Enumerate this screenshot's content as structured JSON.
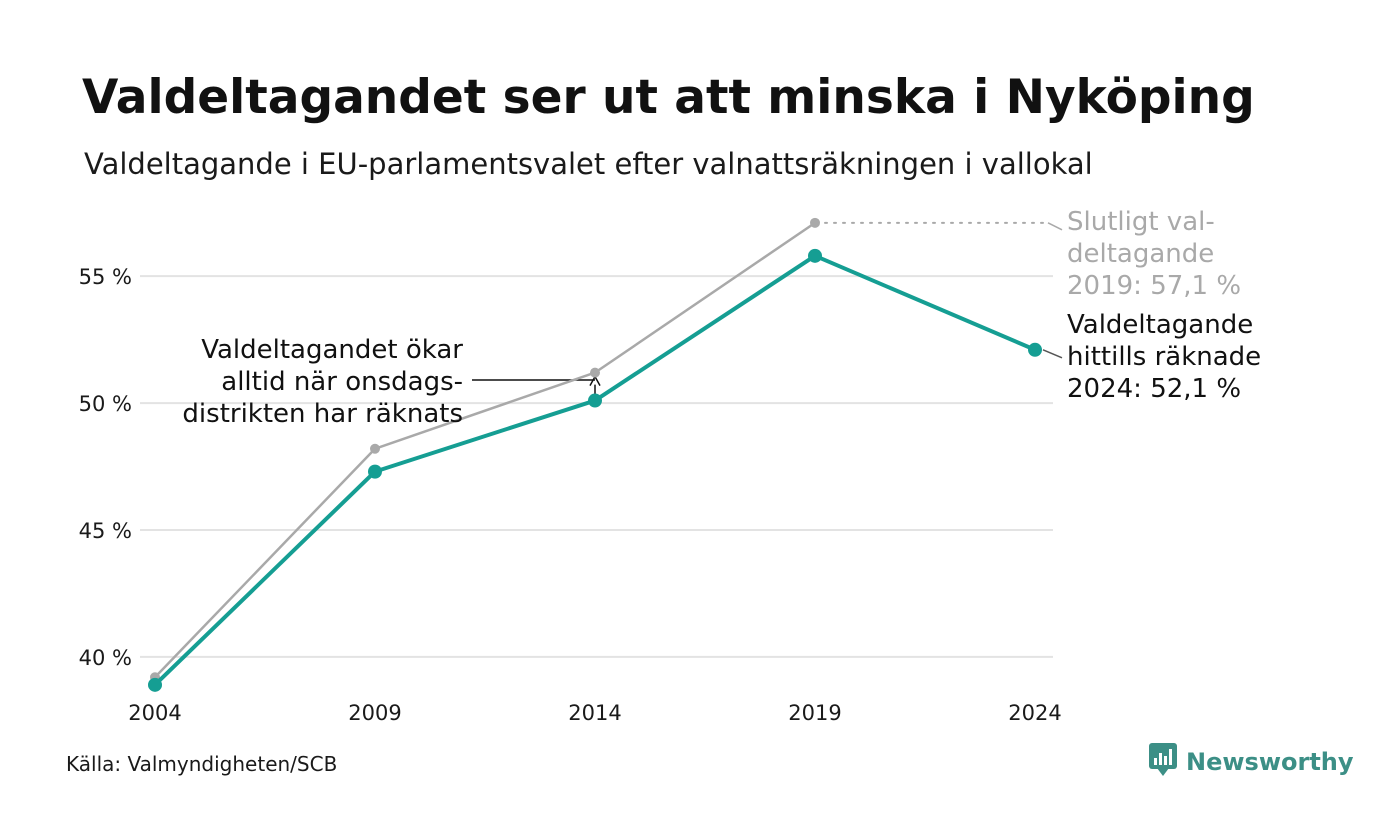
{
  "header": {
    "title": "Valdeltagandet ser ut att minska i Nyköping",
    "subtitle": "Valdeltagande i EU-parlamentsvalet efter valnattsräkningen i vallokal"
  },
  "footer": {
    "source": "Källa: Valmyndigheten/SCB",
    "brand": "Newsworthy",
    "brand_icon": "newsworthy-logo-icon"
  },
  "colors": {
    "final_series": "#a9a9a9",
    "counted_series": "#159e93",
    "grid": "#e3e3e3",
    "brand": "#3c8f86"
  },
  "chart_data": {
    "type": "line",
    "x": [
      2004,
      2009,
      2014,
      2019,
      2024
    ],
    "xticks": [
      "2004",
      "2009",
      "2014",
      "2019",
      "2024"
    ],
    "yticks": [
      {
        "value": 40,
        "label": "40 %"
      },
      {
        "value": 45,
        "label": "45 %"
      },
      {
        "value": 50,
        "label": "50 %"
      },
      {
        "value": 55,
        "label": "55 %"
      }
    ],
    "ylim": [
      38.5,
      58
    ],
    "grid": true,
    "series": [
      {
        "key": "final",
        "values": [
          39.2,
          48.2,
          51.2,
          57.1,
          null
        ]
      },
      {
        "key": "counted",
        "values": [
          38.9,
          47.3,
          50.1,
          55.8,
          52.1
        ]
      }
    ],
    "annotations": {
      "final_label": [
        "Slutligt val-",
        "deltagande",
        "2019: 57,1 %"
      ],
      "counted_label": [
        "Valdeltagande",
        "hittills räknade",
        "2024: 52,1 %"
      ],
      "note": [
        "Valdeltagandet ökar",
        "alltid när onsdags-",
        "distrikten har räknats"
      ]
    }
  }
}
